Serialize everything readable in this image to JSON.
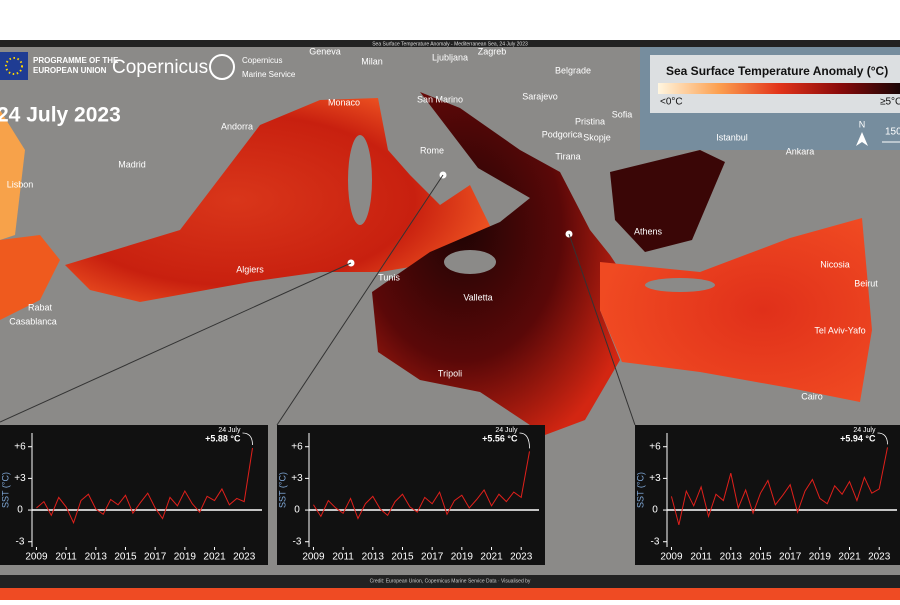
{
  "header": {
    "top_title": "Sea Surface Temperature Anomaly - Mediterranean Sea, 24 July 2023",
    "eu": [
      "PROGRAMME OF THE",
      "EUROPEAN UNION"
    ],
    "copernicus": "Copernicus",
    "cms": [
      "Copernicus",
      "Marine Service"
    ],
    "date": "24 July 2023",
    "credit": "Credit: European Union, Copernicus Marine Service Data · Visualised by"
  },
  "legend": {
    "title": "Sea Surface Temperature Anomaly (°C)",
    "min_label": "<0°C",
    "max_label": "≥5°C",
    "north": "N",
    "scale": "150"
  },
  "map": {
    "labels": [
      "Geneva",
      "Milan",
      "Ljubljana",
      "Zagreb",
      "Belgrade",
      "Monaco",
      "San Marino",
      "Sarajevo",
      "Sofia",
      "Pristina",
      "Podgorica",
      "Skopje",
      "Andorra",
      "Rome",
      "Tirana",
      "Istanbul",
      "Ankara",
      "Madrid",
      "Lisbon",
      "Athens",
      "Algiers",
      "Tunis",
      "Nicosia",
      "Valletta",
      "Beirut",
      "Rabat",
      "Casablanca",
      "Tel Aviv-Yafo",
      "Tripoli",
      "Cairo"
    ]
  },
  "chart_data": [
    {
      "type": "line",
      "ylabel": "SST (°C)",
      "xlim": [
        2008.7,
        2024.2
      ],
      "ylim": [
        -3.5,
        7.3
      ],
      "xticks": [
        2009,
        2011,
        2013,
        2015,
        2017,
        2019,
        2021,
        2023
      ],
      "yticks": [
        {
          "value": 6,
          "label": "+6"
        },
        {
          "value": 3,
          "label": "+3"
        },
        0,
        -3
      ],
      "x": [
        2009,
        2009.5,
        2010,
        2010.5,
        2011,
        2011.5,
        2012,
        2012.5,
        2013,
        2013.5,
        2014,
        2014.5,
        2015,
        2015.5,
        2016,
        2016.5,
        2017,
        2017.5,
        2018,
        2018.5,
        2019,
        2019.5,
        2020,
        2020.5,
        2021,
        2021.5,
        2022,
        2022.5,
        2023,
        2023.56
      ],
      "series": [
        {
          "color": "#e0201b",
          "values": [
            0.2,
            0.8,
            -0.5,
            1.2,
            0.3,
            -1.2,
            0.9,
            1.5,
            0.1,
            -0.4,
            1.0,
            0.5,
            1.4,
            -0.3,
            0.7,
            1.6,
            0.2,
            -0.8,
            1.2,
            0.4,
            1.8,
            0.6,
            -0.2,
            1.3,
            0.9,
            2.0,
            0.5,
            1.1,
            0.8,
            5.88
          ]
        }
      ],
      "annotation": {
        "date": "24 July",
        "value": 5.88,
        "label": "+5.88 °C"
      }
    },
    {
      "type": "line",
      "ylabel": "SST (°C)",
      "xlim": [
        2008.7,
        2024.2
      ],
      "ylim": [
        -3.5,
        7.3
      ],
      "xticks": [
        2009,
        2011,
        2013,
        2015,
        2017,
        2019,
        2021,
        2023
      ],
      "yticks": [
        {
          "value": 6,
          "label": "+6"
        },
        {
          "value": 3,
          "label": "+3"
        },
        0,
        -3
      ],
      "x": [
        2009,
        2009.5,
        2010,
        2010.5,
        2011,
        2011.5,
        2012,
        2012.5,
        2013,
        2013.5,
        2014,
        2014.5,
        2015,
        2015.5,
        2016,
        2016.5,
        2017,
        2017.5,
        2018,
        2018.5,
        2019,
        2019.5,
        2020,
        2020.5,
        2021,
        2021.5,
        2022,
        2022.5,
        2023,
        2023.56
      ],
      "series": [
        {
          "color": "#e0201b",
          "values": [
            0.5,
            -0.6,
            0.9,
            0.2,
            -0.3,
            1.1,
            -0.8,
            0.6,
            1.3,
            0.1,
            -0.5,
            0.8,
            1.5,
            0.3,
            -0.2,
            1.2,
            0.6,
            1.7,
            -0.4,
            0.9,
            1.4,
            0.2,
            1.0,
            1.9,
            0.4,
            1.5,
            0.8,
            1.7,
            1.2,
            5.56
          ]
        }
      ],
      "annotation": {
        "date": "24 July",
        "value": 5.56,
        "label": "+5.56 °C"
      }
    },
    {
      "type": "line",
      "ylabel": "SST (°C)",
      "xlim": [
        2008.7,
        2024.2
      ],
      "ylim": [
        -3.5,
        7.3
      ],
      "xticks": [
        2009,
        2011,
        2013,
        2015,
        2017,
        2019,
        2021,
        2023
      ],
      "yticks": [
        {
          "value": 6,
          "label": "+6"
        },
        {
          "value": 3,
          "label": "+3"
        },
        0,
        -3
      ],
      "x": [
        2009,
        2009.5,
        2010,
        2010.5,
        2011,
        2011.5,
        2012,
        2012.5,
        2013,
        2013.5,
        2014,
        2014.5,
        2015,
        2015.5,
        2016,
        2016.5,
        2017,
        2017.5,
        2018,
        2018.5,
        2019,
        2019.5,
        2020,
        2020.5,
        2021,
        2021.5,
        2022,
        2022.5,
        2023,
        2023.56
      ],
      "series": [
        {
          "color": "#e0201b",
          "values": [
            1.3,
            -1.4,
            1.8,
            0.4,
            2.2,
            -0.6,
            1.5,
            0.9,
            3.5,
            0.2,
            1.9,
            -0.3,
            1.6,
            2.8,
            0.5,
            1.4,
            2.4,
            -0.2,
            1.8,
            2.9,
            1.1,
            0.6,
            2.3,
            1.5,
            2.7,
            0.9,
            3.1,
            1.6,
            2.0,
            5.94
          ]
        }
      ],
      "annotation": {
        "date": "24 July",
        "value": 5.94,
        "label": "+5.94 °C"
      }
    }
  ]
}
